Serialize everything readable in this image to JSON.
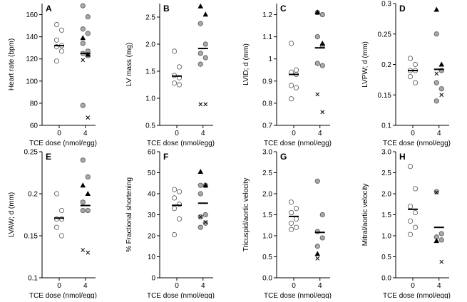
{
  "chart_data": [
    {
      "type": "scatter",
      "panel_label": "A",
      "ylabel": "Heart rate (bpm)",
      "xlabel": "TCE dose (nmol/egg)",
      "categories": [
        "0",
        "4"
      ],
      "ylim": [
        60,
        170
      ],
      "yticks": [
        60,
        80,
        100,
        120,
        140,
        160
      ],
      "ytick_labels": [
        "60",
        "80",
        "100",
        "120",
        "140",
        "160"
      ],
      "series": [
        {
          "group": "0",
          "marker": "open-circle",
          "values": [
            151,
            146,
            137,
            132,
            131,
            127,
            118
          ]
        },
        {
          "group": "4",
          "marker": "gray-circle",
          "values": [
            168,
            158,
            147,
            143,
            134,
            127,
            125,
            123,
            78
          ]
        },
        {
          "group": "4",
          "marker": "filled-triangle",
          "values": [
            139,
            124
          ]
        },
        {
          "group": "4",
          "marker": "x",
          "values": [
            119,
            67
          ]
        }
      ],
      "means": {
        "0": 132,
        "4": 125
      }
    },
    {
      "type": "scatter",
      "panel_label": "B",
      "ylabel": "LV mass (mg)",
      "xlabel": "TCE dose (nmol/egg)",
      "categories": [
        "0",
        "4"
      ],
      "ylim": [
        0.5,
        2.75
      ],
      "yticks": [
        0.5,
        1.0,
        1.5,
        2.0,
        2.5
      ],
      "ytick_labels": [
        "0.5",
        "1.0",
        "1.5",
        "2.0",
        "2.5"
      ],
      "series": [
        {
          "group": "0",
          "marker": "open-circle",
          "values": [
            1.87,
            1.58,
            1.42,
            1.38,
            1.28,
            1.25
          ]
        },
        {
          "group": "4",
          "marker": "gray-circle",
          "values": [
            2.38,
            2.0,
            1.83,
            1.75,
            1.63
          ]
        },
        {
          "group": "4",
          "marker": "filled-triangle",
          "values": [
            2.7,
            2.55
          ]
        },
        {
          "group": "4",
          "marker": "x",
          "values": [
            0.89,
            0.89
          ]
        }
      ],
      "means": {
        "0": 1.41,
        "4": 1.92
      }
    },
    {
      "type": "scatter",
      "panel_label": "C",
      "ylabel": "LVID; d (mm)",
      "xlabel": "TCE dose (nmol/egg)",
      "categories": [
        "0",
        "4"
      ],
      "ylim": [
        0.7,
        1.25
      ],
      "yticks": [
        0.7,
        0.8,
        0.9,
        1.0,
        1.1,
        1.2
      ],
      "ytick_labels": [
        "0.7",
        "0.8",
        "0.9",
        "1",
        "1.1",
        "1.2"
      ],
      "series": [
        {
          "group": "0",
          "marker": "open-circle",
          "values": [
            1.07,
            0.95,
            0.94,
            0.93,
            0.88,
            0.87,
            0.82
          ]
        },
        {
          "group": "4",
          "marker": "gray-circle",
          "values": [
            1.21,
            1.2,
            1.1,
            1.06,
            0.98,
            0.97
          ]
        },
        {
          "group": "4",
          "marker": "filled-triangle",
          "values": [
            1.21,
            1.07
          ]
        },
        {
          "group": "4",
          "marker": "x",
          "values": [
            0.84,
            0.76
          ]
        }
      ],
      "means": {
        "0": 0.93,
        "4": 1.05
      }
    },
    {
      "type": "scatter",
      "panel_label": "D",
      "ylabel": "LVPW; d (mm)",
      "xlabel": "TCE dose (nmol/egg)",
      "categories": [
        "0",
        "4"
      ],
      "ylim": [
        0.1,
        0.3
      ],
      "yticks": [
        0.1,
        0.15,
        0.2,
        0.25,
        0.3
      ],
      "ytick_labels": [
        "0.1",
        "0.15",
        "0.2",
        "0.25",
        "0.3"
      ],
      "series": [
        {
          "group": "0",
          "marker": "open-circle",
          "values": [
            0.21,
            0.2,
            0.19,
            0.19,
            0.18,
            0.17
          ]
        },
        {
          "group": "4",
          "marker": "gray-circle",
          "values": [
            0.25,
            0.19,
            0.17,
            0.16,
            0.14
          ]
        },
        {
          "group": "4",
          "marker": "filled-triangle",
          "values": [
            0.29,
            0.2
          ]
        },
        {
          "group": "4",
          "marker": "x",
          "values": [
            0.185,
            0.15
          ]
        }
      ],
      "means": {
        "0": 0.19,
        "4": 0.192
      }
    },
    {
      "type": "scatter",
      "panel_label": "E",
      "ylabel": "LVAW; d (mm)",
      "xlabel": "TCE dose (nmol/egg)",
      "categories": [
        "0",
        "4"
      ],
      "ylim": [
        0.1,
        0.25
      ],
      "yticks": [
        0.1,
        0.15,
        0.2,
        0.25
      ],
      "ytick_labels": [
        "0.1",
        "0.15",
        "0.2",
        "0.25"
      ],
      "series": [
        {
          "group": "0",
          "marker": "open-circle",
          "values": [
            0.2,
            0.18,
            0.17,
            0.17,
            0.16,
            0.15
          ]
        },
        {
          "group": "4",
          "marker": "gray-circle",
          "values": [
            0.24,
            0.22,
            0.19,
            0.18,
            0.18
          ]
        },
        {
          "group": "4",
          "marker": "filled-triangle",
          "values": [
            0.21,
            0.2
          ]
        },
        {
          "group": "4",
          "marker": "x",
          "values": [
            0.133,
            0.13
          ]
        }
      ],
      "means": {
        "0": 0.171,
        "4": 0.186
      }
    },
    {
      "type": "scatter",
      "panel_label": "F",
      "ylabel": "% Fractional shortening",
      "xlabel": "TCE dose (nmol/egg)",
      "categories": [
        "0",
        "4"
      ],
      "ylim": [
        0,
        60
      ],
      "yticks": [
        0,
        10,
        20,
        30,
        40,
        50,
        60
      ],
      "ytick_labels": [
        "0",
        "10",
        "20",
        "30",
        "40",
        "50",
        "60"
      ],
      "series": [
        {
          "group": "0",
          "marker": "open-circle",
          "values": [
            42,
            41,
            38,
            35,
            33,
            28,
            20.5
          ]
        },
        {
          "group": "4",
          "marker": "gray-circle",
          "values": [
            44,
            44,
            40,
            30,
            29,
            26,
            24
          ]
        },
        {
          "group": "4",
          "marker": "filled-triangle",
          "values": [
            50.5,
            44
          ]
        },
        {
          "group": "4",
          "marker": "x",
          "values": [
            29,
            26.5
          ]
        }
      ],
      "means": {
        "0": 34.5,
        "4": 35.5
      }
    },
    {
      "type": "scatter",
      "panel_label": "G",
      "ylabel": "Tricuspid/aortic velocity",
      "xlabel": "TCE dose (nmol/egg)",
      "categories": [
        "0",
        "4"
      ],
      "ylim": [
        0,
        3.0
      ],
      "yticks": [
        0,
        0.5,
        1.0,
        1.5,
        2.0,
        2.5,
        3.0
      ],
      "ytick_labels": [
        "0.0",
        "0.5",
        "1.0",
        "1.5",
        "2.0",
        "2.5",
        "3.0"
      ],
      "series": [
        {
          "group": "0",
          "marker": "open-circle",
          "values": [
            1.8,
            1.65,
            1.55,
            1.4,
            1.3,
            1.2,
            1.15
          ]
        },
        {
          "group": "4",
          "marker": "gray-circle",
          "values": [
            2.3,
            1.5,
            1.1,
            0.95,
            0.75
          ]
        },
        {
          "group": "4",
          "marker": "filled-triangle",
          "values": [
            0.57
          ]
        },
        {
          "group": "4",
          "marker": "x",
          "values": [
            0.46
          ]
        }
      ],
      "means": {
        "0": 1.46,
        "4": 1.08
      }
    },
    {
      "type": "scatter",
      "panel_label": "H",
      "ylabel": "Mitral/aortic velocity",
      "xlabel": "TCE dose (nmol/egg)",
      "categories": [
        "0",
        "4"
      ],
      "ylim": [
        0,
        3.0
      ],
      "yticks": [
        0,
        0.5,
        1.0,
        1.5,
        2.0,
        2.5,
        3.0
      ],
      "ytick_labels": [
        "0.0",
        "0.5",
        "1.0",
        "1.5",
        "2.0",
        "2.5",
        "3.0"
      ],
      "series": [
        {
          "group": "0",
          "marker": "open-circle",
          "values": [
            2.65,
            2.12,
            1.7,
            1.55,
            1.35,
            1.2,
            1.03
          ]
        },
        {
          "group": "4",
          "marker": "gray-circle",
          "values": [
            2.05,
            1.05,
            0.97,
            0.9
          ]
        },
        {
          "group": "4",
          "marker": "filled-triangle",
          "values": [
            0.88
          ]
        },
        {
          "group": "4",
          "marker": "x",
          "values": [
            2.03,
            0.38
          ]
        }
      ],
      "means": {
        "0": 1.63,
        "4": 1.2
      }
    }
  ]
}
